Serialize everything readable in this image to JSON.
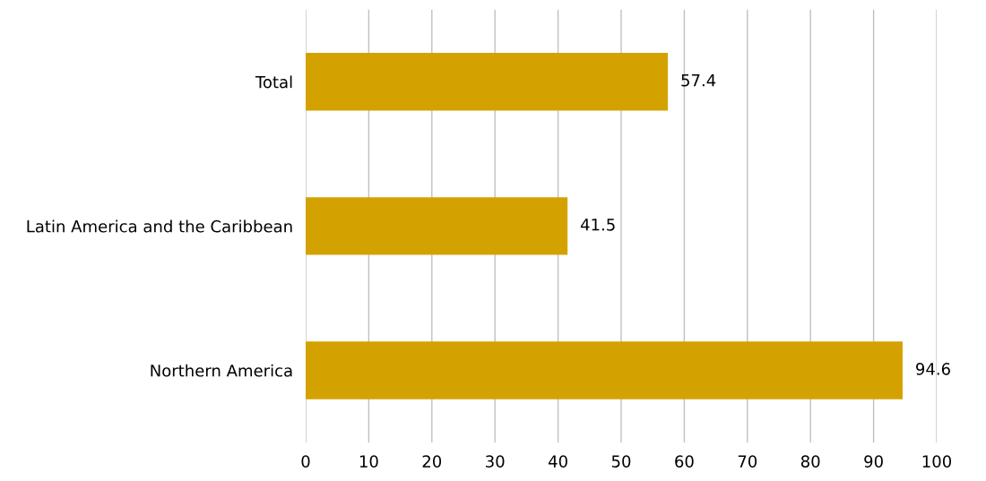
{
  "chart_data": {
    "type": "bar",
    "orientation": "horizontal",
    "categories": [
      "Total",
      "Latin America and the Caribbean",
      "Northern America"
    ],
    "values": [
      57.4,
      41.5,
      94.6
    ],
    "color": "#d4a200",
    "xlim": [
      0,
      100
    ],
    "xticks": [
      0,
      10,
      20,
      30,
      40,
      50,
      60,
      70,
      80,
      90,
      100
    ],
    "grid": "x",
    "data_labels": true
  }
}
